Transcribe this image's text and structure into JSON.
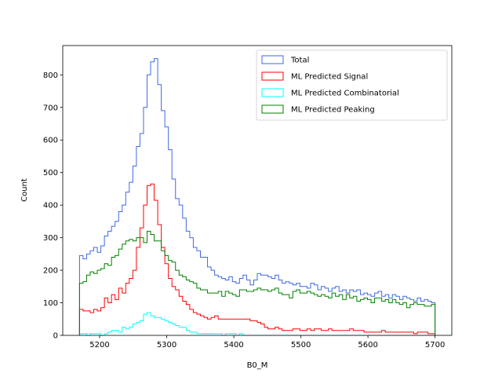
{
  "chart_data": {
    "type": "histogram-step",
    "xlabel": "B0_M",
    "ylabel": "Count",
    "xlim": [
      5145,
      5725
    ],
    "ylim": [
      0,
      890
    ],
    "xticks": [
      5200,
      5300,
      5400,
      5500,
      5600,
      5700
    ],
    "yticks": [
      0,
      100,
      200,
      300,
      400,
      500,
      600,
      700,
      800
    ],
    "legend_position": "top-right",
    "bins": {
      "start": 5170,
      "width": 5.3,
      "count": 100
    },
    "series": [
      {
        "name": "Total",
        "color": "#4169e1",
        "values": [
          245,
          235,
          250,
          260,
          270,
          255,
          275,
          305,
          320,
          335,
          350,
          380,
          400,
          440,
          470,
          520,
          580,
          620,
          700,
          800,
          840,
          850,
          770,
          690,
          640,
          570,
          480,
          420,
          400,
          360,
          320,
          300,
          270,
          260,
          240,
          240,
          210,
          200,
          185,
          180,
          175,
          170,
          180,
          165,
          160,
          175,
          185,
          170,
          155,
          170,
          190,
          185,
          185,
          180,
          175,
          185,
          170,
          160,
          165,
          160,
          155,
          160,
          150,
          150,
          145,
          160,
          155,
          140,
          150,
          145,
          135,
          145,
          150,
          135,
          140,
          130,
          140,
          135,
          140,
          125,
          130,
          125,
          120,
          130,
          135,
          120,
          125,
          115,
          125,
          120,
          110,
          120,
          115,
          110,
          105,
          115,
          105,
          110,
          105,
          100
        ],
        "fill_values_note": ""
      },
      {
        "name": "ML Predicted Signal",
        "color": "#ff0000",
        "values": [
          80,
          75,
          75,
          70,
          80,
          75,
          85,
          115,
          100,
          125,
          110,
          145,
          130,
          160,
          175,
          200,
          270,
          330,
          400,
          460,
          465,
          415,
          340,
          270,
          220,
          175,
          150,
          140,
          120,
          105,
          95,
          80,
          70,
          65,
          60,
          55,
          50,
          55,
          60,
          50,
          50,
          50,
          50,
          50,
          50,
          50,
          50,
          50,
          45,
          45,
          40,
          35,
          25,
          20,
          20,
          25,
          20,
          15,
          15,
          15,
          20,
          20,
          15,
          15,
          20,
          15,
          20,
          20,
          15,
          15,
          20,
          15,
          15,
          15,
          15,
          15,
          20,
          15,
          15,
          15,
          10,
          10,
          10,
          10,
          10,
          15,
          10,
          10,
          10,
          10,
          10,
          10,
          10,
          10,
          5,
          10,
          10,
          10,
          5,
          5
        ]
      },
      {
        "name": "ML Predicted Combinatorial",
        "color": "#00ffff",
        "values": [
          5,
          5,
          0,
          5,
          5,
          5,
          0,
          5,
          10,
          15,
          15,
          10,
          25,
          20,
          25,
          35,
          40,
          45,
          65,
          70,
          60,
          55,
          55,
          50,
          45,
          40,
          35,
          30,
          25,
          25,
          15,
          10,
          10,
          5,
          5,
          5,
          5,
          5,
          5,
          5,
          0,
          5,
          5,
          5,
          0,
          5,
          0,
          0,
          0,
          0,
          0,
          0,
          0,
          0,
          0,
          0,
          0,
          0,
          0,
          0,
          0,
          0,
          0,
          0,
          0,
          0,
          0,
          0,
          0,
          0,
          0,
          0,
          0,
          0,
          0,
          0,
          0,
          0,
          0,
          0,
          0,
          0,
          0,
          0,
          0,
          0,
          0,
          0,
          0,
          0,
          0,
          0,
          0,
          0,
          0,
          0,
          0,
          0,
          0,
          0
        ]
      },
      {
        "name": "ML Predicted Peaking",
        "color": "#008000",
        "values": [
          160,
          165,
          185,
          195,
          190,
          200,
          205,
          220,
          215,
          240,
          245,
          265,
          280,
          290,
          295,
          290,
          300,
          300,
          285,
          320,
          310,
          290,
          290,
          260,
          245,
          230,
          225,
          200,
          185,
          180,
          170,
          165,
          160,
          145,
          140,
          140,
          130,
          130,
          130,
          135,
          120,
          135,
          130,
          125,
          120,
          140,
          140,
          135,
          135,
          140,
          145,
          140,
          140,
          135,
          140,
          145,
          130,
          125,
          125,
          115,
          135,
          140,
          130,
          130,
          135,
          130,
          125,
          120,
          125,
          120,
          115,
          130,
          120,
          125,
          110,
          125,
          115,
          120,
          105,
          110,
          115,
          110,
          100,
          115,
          115,
          105,
          110,
          100,
          110,
          100,
          95,
          100,
          85,
          95,
          100,
          95,
          95,
          90,
          90,
          95
        ]
      }
    ]
  }
}
